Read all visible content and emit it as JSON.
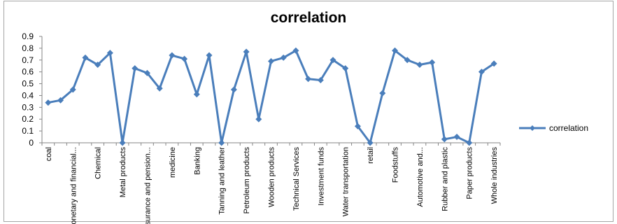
{
  "chart_data": {
    "type": "line",
    "title": "correlation",
    "xlabel": "",
    "ylabel": "",
    "ylim": [
      0,
      0.9
    ],
    "yticks": [
      "0",
      "0.1",
      "0.2",
      "0.3",
      "0.4",
      "0.5",
      "0.6",
      "0.7",
      "0.8",
      "0.9"
    ],
    "grid": false,
    "legend_position": "right",
    "color": "#4a7ebb",
    "categories": [
      "coal",
      "",
      "Monetary and financial...",
      "",
      "Chemical",
      "",
      "Metal products",
      "",
      "Insurance and pension...",
      "",
      "medicine",
      "",
      "Banking",
      "",
      "Tanning and leather",
      "",
      "Petroleum products",
      "",
      "Wooden products",
      "",
      "Technical Services",
      "",
      "Investment funds",
      "",
      "Water transportation",
      "",
      "retail",
      "",
      "Foodstuffs",
      "",
      "Automotive and...",
      "",
      "Rubber and plastic",
      "",
      "Paper products",
      "",
      "Whole industries"
    ],
    "series": [
      {
        "name": "correlation",
        "values": [
          0.34,
          0.36,
          0.45,
          0.72,
          0.66,
          0.76,
          0.0,
          0.63,
          0.59,
          0.46,
          0.74,
          0.71,
          0.41,
          0.74,
          0.0,
          0.45,
          0.77,
          0.2,
          0.69,
          0.72,
          0.78,
          0.54,
          0.53,
          0.7,
          0.63,
          0.14,
          0.0,
          0.42,
          0.78,
          0.7,
          0.66,
          0.68,
          0.03,
          0.05,
          0.0,
          0.6,
          0.67
        ]
      }
    ]
  }
}
